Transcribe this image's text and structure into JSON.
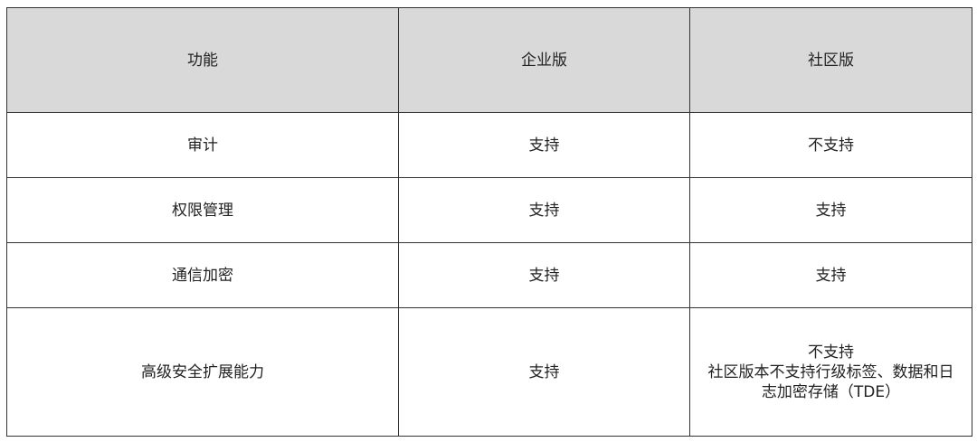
{
  "headers": [
    "功能",
    "企业版",
    "社区版"
  ],
  "rows": [
    {
      "feature": "审计",
      "enterprise": "支持",
      "community": "不支持"
    },
    {
      "feature": "权限管理",
      "enterprise": "支持",
      "community": "支持"
    },
    {
      "feature": "通信加密",
      "enterprise": "支持",
      "community": "支持"
    },
    {
      "feature": "高级安全扩展能力",
      "enterprise": "支持",
      "community": "不支持",
      "community_note": "社区版本不支持行级标签、数据和日志加密存储（TDE）"
    }
  ]
}
